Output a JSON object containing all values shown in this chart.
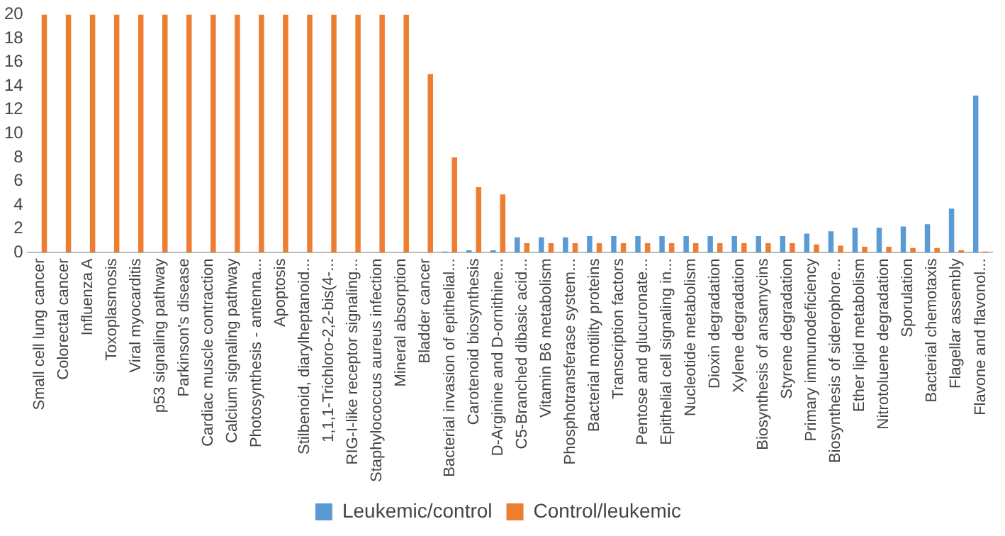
{
  "chart_data": {
    "type": "bar",
    "categories": [
      "Small cell lung cancer",
      "Colorectal cancer",
      "Influenza A",
      "Toxoplasmosis",
      "Viral myocarditis",
      "p53 signaling pathway",
      "Parkinson's disease",
      "Cardiac muscle contraction",
      "Calcium signaling pathway",
      "Photosynthesis - antenna...",
      "Apoptosis",
      "Stilbenoid, diarylheptanoid...",
      "1,1,1-Trichloro-2,2-bis(4-...",
      "RIG-I-like receptor signaling...",
      "Staphylococcus aureus infection",
      "Mineral absorption",
      "Bladder cancer",
      "Bacterial invasion of epithelial...",
      "Carotenoid biosynthesis",
      "D-Arginine and D-ornithine...",
      "C5-Branched dibasic acid...",
      "Vitamin B6 metabolism",
      "Phosphotransferase system...",
      "Bacterial motility proteins",
      "Transcription factors",
      "Pentose and glucuronate...",
      "Epithelial cell signaling in...",
      "Nucleotide metabolism",
      "Dioxin degradation",
      "Xylene degradation",
      "Biosynthesis of ansamycins",
      "Styrene degradation",
      "Primary immunodeficiency",
      "Biosynthesis of siderophore...",
      "Ether lipid metabolism",
      "Nitrotoluene degradation",
      "Sporulation",
      "Bacterial chemotaxis",
      "Flagellar assembly",
      "Flavone and flavonol..."
    ],
    "series": [
      {
        "name": "Leukemic/control",
        "color": "#5b9bd5",
        "values": [
          0,
          0,
          0,
          0,
          0,
          0,
          0,
          0,
          0,
          0,
          0,
          0,
          0,
          0,
          0,
          0,
          0,
          0.1,
          0.2,
          0.2,
          1.3,
          1.3,
          1.3,
          1.4,
          1.4,
          1.4,
          1.4,
          1.4,
          1.4,
          1.4,
          1.4,
          1.4,
          1.6,
          1.8,
          2.1,
          2.1,
          2.2,
          2.4,
          3.7,
          13.2
        ]
      },
      {
        "name": "Control/leukemic",
        "color": "#ed7d31",
        "values": [
          20,
          20,
          20,
          20,
          20,
          20,
          20,
          20,
          20,
          20,
          20,
          20,
          20,
          20,
          20,
          20,
          15,
          8,
          5.5,
          4.9,
          0.8,
          0.8,
          0.8,
          0.8,
          0.8,
          0.8,
          0.8,
          0.8,
          0.8,
          0.8,
          0.8,
          0.8,
          0.7,
          0.6,
          0.5,
          0.5,
          0.4,
          0.4,
          0.2,
          0.1
        ]
      }
    ],
    "ylim": [
      0,
      20
    ],
    "yticks": [
      0,
      2,
      4,
      6,
      8,
      10,
      12,
      14,
      16,
      18,
      20
    ],
    "grid": false,
    "legend": "bottom"
  }
}
